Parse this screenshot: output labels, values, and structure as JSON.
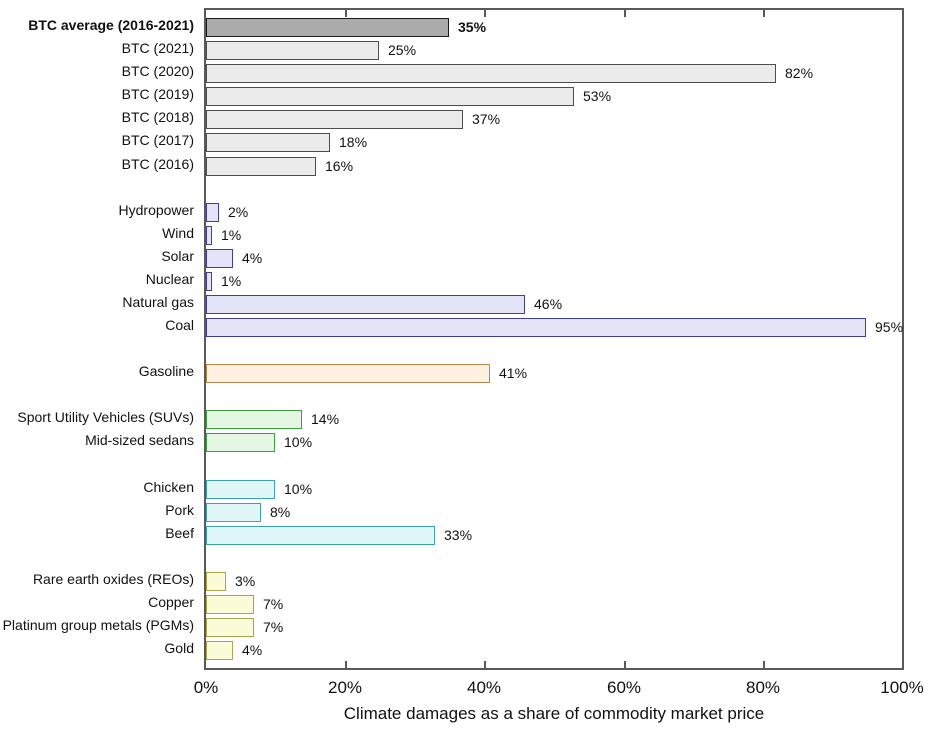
{
  "figure": {
    "xlabel": "Climate damages as a share of commodity market price"
  },
  "chart_data": {
    "type": "bar",
    "orientation": "horizontal",
    "xlabel": "Climate damages as a share of commodity market price",
    "xlim": [
      0,
      100
    ],
    "x_ticks": [
      0,
      20,
      40,
      60,
      80,
      100
    ],
    "x_tick_labels": [
      "0%",
      "20%",
      "40%",
      "60%",
      "80%",
      "100%"
    ],
    "grid": false,
    "legend": "none",
    "frame_color": "#595959",
    "groups": [
      {
        "name": "bitcoin",
        "fill": "#ebebeb",
        "stroke": "#4d4d4d",
        "items": [
          {
            "label": "BTC average (2016-2021)",
            "value": 35,
            "display": "35%",
            "bold": true,
            "fill": "#ababab",
            "stroke": "#1a1a1a"
          },
          {
            "label": "BTC (2021)",
            "value": 25,
            "display": "25%"
          },
          {
            "label": "BTC (2020)",
            "value": 82,
            "display": "82%"
          },
          {
            "label": "BTC (2019)",
            "value": 53,
            "display": "53%"
          },
          {
            "label": "BTC (2018)",
            "value": 37,
            "display": "37%"
          },
          {
            "label": "BTC (2017)",
            "value": 18,
            "display": "18%"
          },
          {
            "label": "BTC (2016)",
            "value": 16,
            "display": "16%"
          }
        ]
      },
      {
        "name": "energy",
        "fill": "#e4e4f8",
        "stroke": "#3f3f96",
        "items": [
          {
            "label": "Hydropower",
            "value": 2,
            "display": "2%"
          },
          {
            "label": "Wind",
            "value": 1,
            "display": "1%"
          },
          {
            "label": "Solar",
            "value": 4,
            "display": "4%"
          },
          {
            "label": "Nuclear",
            "value": 1,
            "display": "1%"
          },
          {
            "label": "Natural gas",
            "value": 46,
            "display": "46%"
          },
          {
            "label": "Coal",
            "value": 95,
            "display": "95%"
          }
        ]
      },
      {
        "name": "fuel",
        "fill": "#fdf1e2",
        "stroke": "#b5854a",
        "items": [
          {
            "label": "Gasoline",
            "value": 41,
            "display": "41%"
          }
        ]
      },
      {
        "name": "vehicles",
        "fill": "#e3f7e2",
        "stroke": "#3f9e44",
        "items": [
          {
            "label": "Sport Utility Vehicles (SUVs)",
            "value": 14,
            "display": "14%"
          },
          {
            "label": "Mid-sized sedans",
            "value": 10,
            "display": "10%"
          }
        ]
      },
      {
        "name": "meat",
        "fill": "#e0f7f8",
        "stroke": "#3da3ab",
        "items": [
          {
            "label": "Chicken",
            "value": 10,
            "display": "10%"
          },
          {
            "label": "Pork",
            "value": 8,
            "display": "8%"
          },
          {
            "label": "Beef",
            "value": 33,
            "display": "33%"
          }
        ]
      },
      {
        "name": "metals",
        "fill": "#fbfbd8",
        "stroke": "#a6a64f",
        "items": [
          {
            "label": "Rare earth oxides (REOs)",
            "value": 3,
            "display": "3%"
          },
          {
            "label": "Copper",
            "value": 7,
            "display": "7%"
          },
          {
            "label": "Platinum group metals (PGMs)",
            "value": 7,
            "display": "7%"
          },
          {
            "label": "Gold",
            "value": 4,
            "display": "4%"
          }
        ]
      }
    ]
  }
}
